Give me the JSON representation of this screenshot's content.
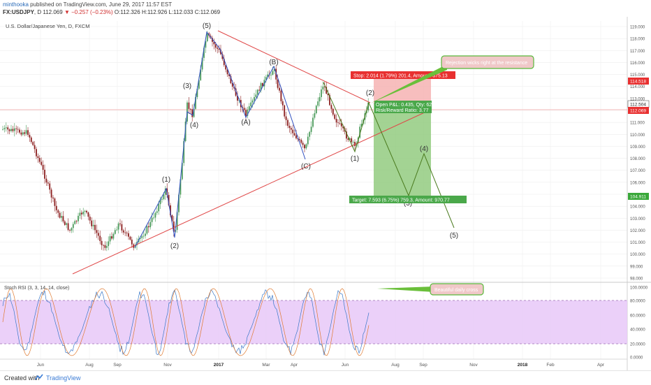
{
  "header": {
    "author": "minthooka",
    "published": "published on TradingView.com, June 29, 2017 11:57 EST",
    "symbol": "FX:USDJPY",
    "interval": ", D",
    "last": "112.069",
    "change": "▼ −0.257 (−0.23%)",
    "o": "O:112.326",
    "h": "H:112.926",
    "l": "L:112.033",
    "c": "C:112.069"
  },
  "chart": {
    "instrument_label": "U.S. Dollar/Japanese Yen, D, FXCM",
    "price_axis_labels": [
      "119.000",
      "118.000",
      "117.000",
      "116.000",
      "115.000",
      "114.000",
      "113.000",
      "112.000",
      "111.000",
      "110.000",
      "109.000",
      "108.000",
      "107.000",
      "106.000",
      "105.000",
      "104.000",
      "103.000",
      "102.000",
      "101.000",
      "100.000",
      "99.000",
      "98.000"
    ],
    "current_price_tag": "112.069",
    "stop_price_tag": "114.518",
    "entry_price_tag": "112.504",
    "target_price_tag": "104.911",
    "time_labels": [
      "Jun",
      "Aug",
      "Sep",
      "Nov",
      "2017",
      "Mar",
      "Apr",
      "Jun",
      "Aug",
      "Sep",
      "Nov",
      "2018",
      "Feb",
      "Apr"
    ],
    "wave_labels": [
      "(5)",
      "(3)",
      "(4)",
      "(1)",
      "(2)",
      "(A)",
      "(B)",
      "(C)",
      "(1)",
      "(2)",
      "(3)",
      "(4)",
      "(5)"
    ],
    "position": {
      "stop": "Stop: 2.014 (1.79%) 201.4, Amount: 375.13",
      "open_pl": "Open P&L: 0.435, Qty: 62",
      "risk_reward": "Risk/Reward Ratio: 3.77",
      "target": "Target: 7.593 (6.75%) 759.3, Amount: 970.77"
    },
    "callouts": {
      "resistance": "Rejection wicks right at the resistance",
      "stoch": "Beautiful daily cross"
    },
    "colors": {
      "bull_candle": "#4a9a5a",
      "bear_candle": "#8b1e1e",
      "trendline": "#e04848",
      "wave_line": "#3050c0",
      "forecast_line": "#4a7a1e",
      "stop_zone": "#f4a8a8",
      "target_zone": "#8cc878"
    }
  },
  "stoch": {
    "label": "Stoch RSI (3, 3, 14, 14, close)",
    "axis_labels": [
      "100.0000",
      "80.0000",
      "60.0000",
      "40.0000",
      "20.0000",
      "0.0000"
    ]
  },
  "footer": {
    "created_with": "Created with",
    "brand": "TradingView"
  }
}
